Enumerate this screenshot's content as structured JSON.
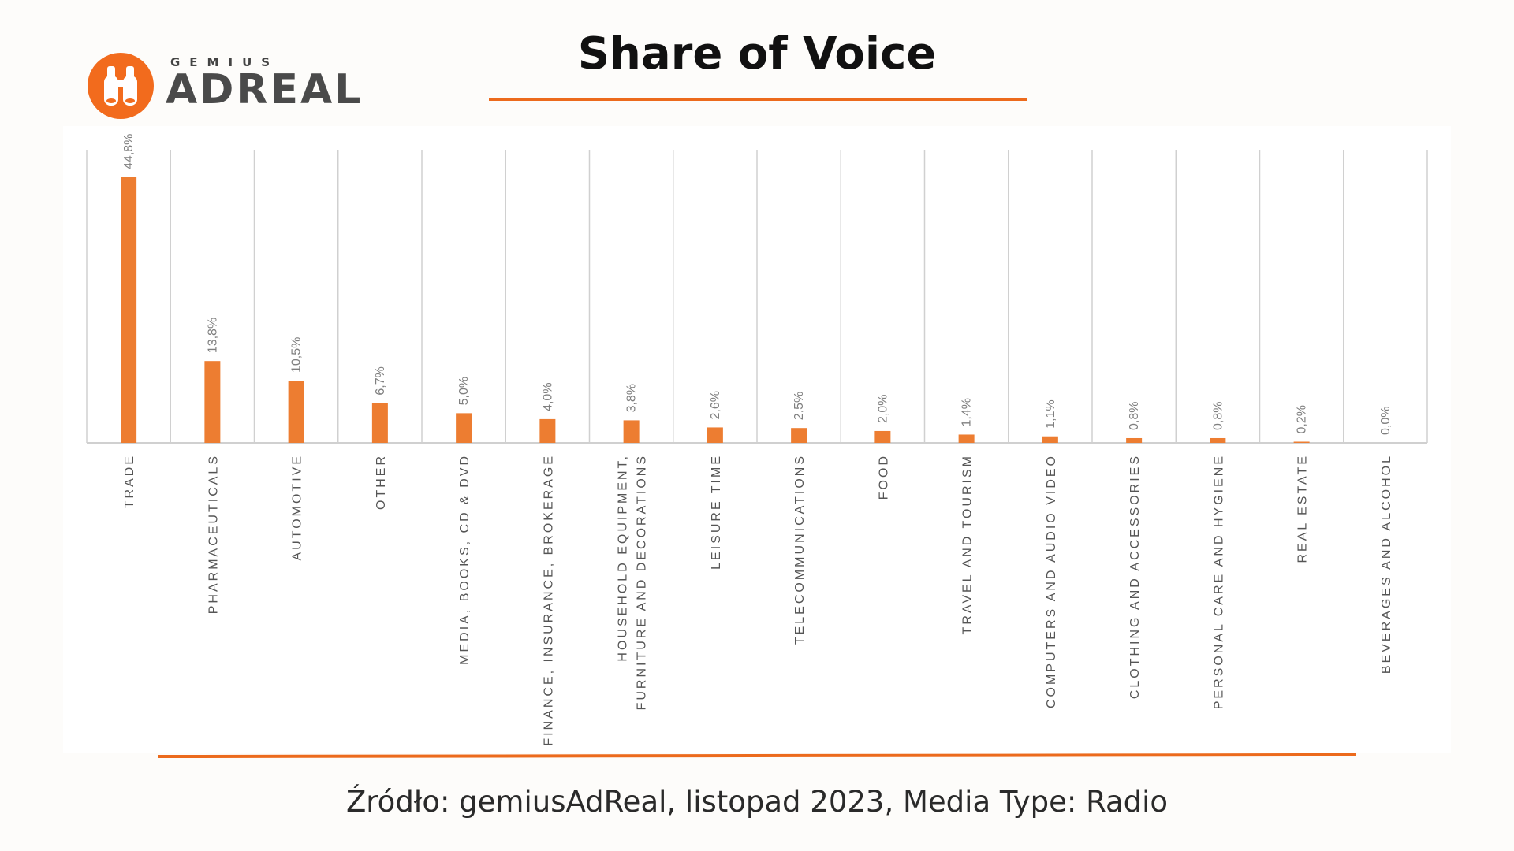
{
  "brand": {
    "small": "GEMIUS",
    "big": "ADREAL",
    "accent_color": "#f26b1d",
    "logo_icon": "binoculars-icon"
  },
  "title": "Share of Voice",
  "source": "Źródło: gemiusAdReal, listopad 2023, Media Type: Radio",
  "chart_data": {
    "type": "bar",
    "title": "Share of Voice",
    "categories": [
      [
        "TRADE"
      ],
      [
        "PHARMACEUTICALS"
      ],
      [
        "AUTOMOTIVE"
      ],
      [
        "OTHER"
      ],
      [
        "MEDIA, BOOKS, CD & DVD"
      ],
      [
        "FINANCE, INSURANCE, BROKERAGE"
      ],
      [
        "HOUSEHOLD EQUIPMENT,",
        "FURNITURE AND DECORATIONS"
      ],
      [
        "LEISURE TIME"
      ],
      [
        "TELECOMMUNICATIONS"
      ],
      [
        "FOOD"
      ],
      [
        "TRAVEL AND TOURISM"
      ],
      [
        "COMPUTERS AND AUDIO VIDEO"
      ],
      [
        "CLOTHING AND ACCESSORIES"
      ],
      [
        "PERSONAL CARE AND HYGIENE"
      ],
      [
        "REAL ESTATE"
      ],
      [
        "BEVERAGES AND ALCOHOL"
      ]
    ],
    "values": [
      44.8,
      13.8,
      10.5,
      6.7,
      5.0,
      4.0,
      3.8,
      2.6,
      2.5,
      2.0,
      1.4,
      1.1,
      0.8,
      0.8,
      0.2,
      0.0
    ],
    "labels": [
      "44,8%",
      "13,8%",
      "10,5%",
      "6,7%",
      "5,0%",
      "4,0%",
      "3,8%",
      "2,6%",
      "2,5%",
      "2,0%",
      "1,4%",
      "1,1%",
      "0,8%",
      "0,8%",
      "0,2%",
      "0,0%"
    ],
    "unit": "%",
    "ylim": [
      0,
      50
    ],
    "grid": "vertical separators",
    "bar_color": "#ed7d31",
    "label_color": "#7f7f7f",
    "axis_color": "#d0d0d0"
  }
}
